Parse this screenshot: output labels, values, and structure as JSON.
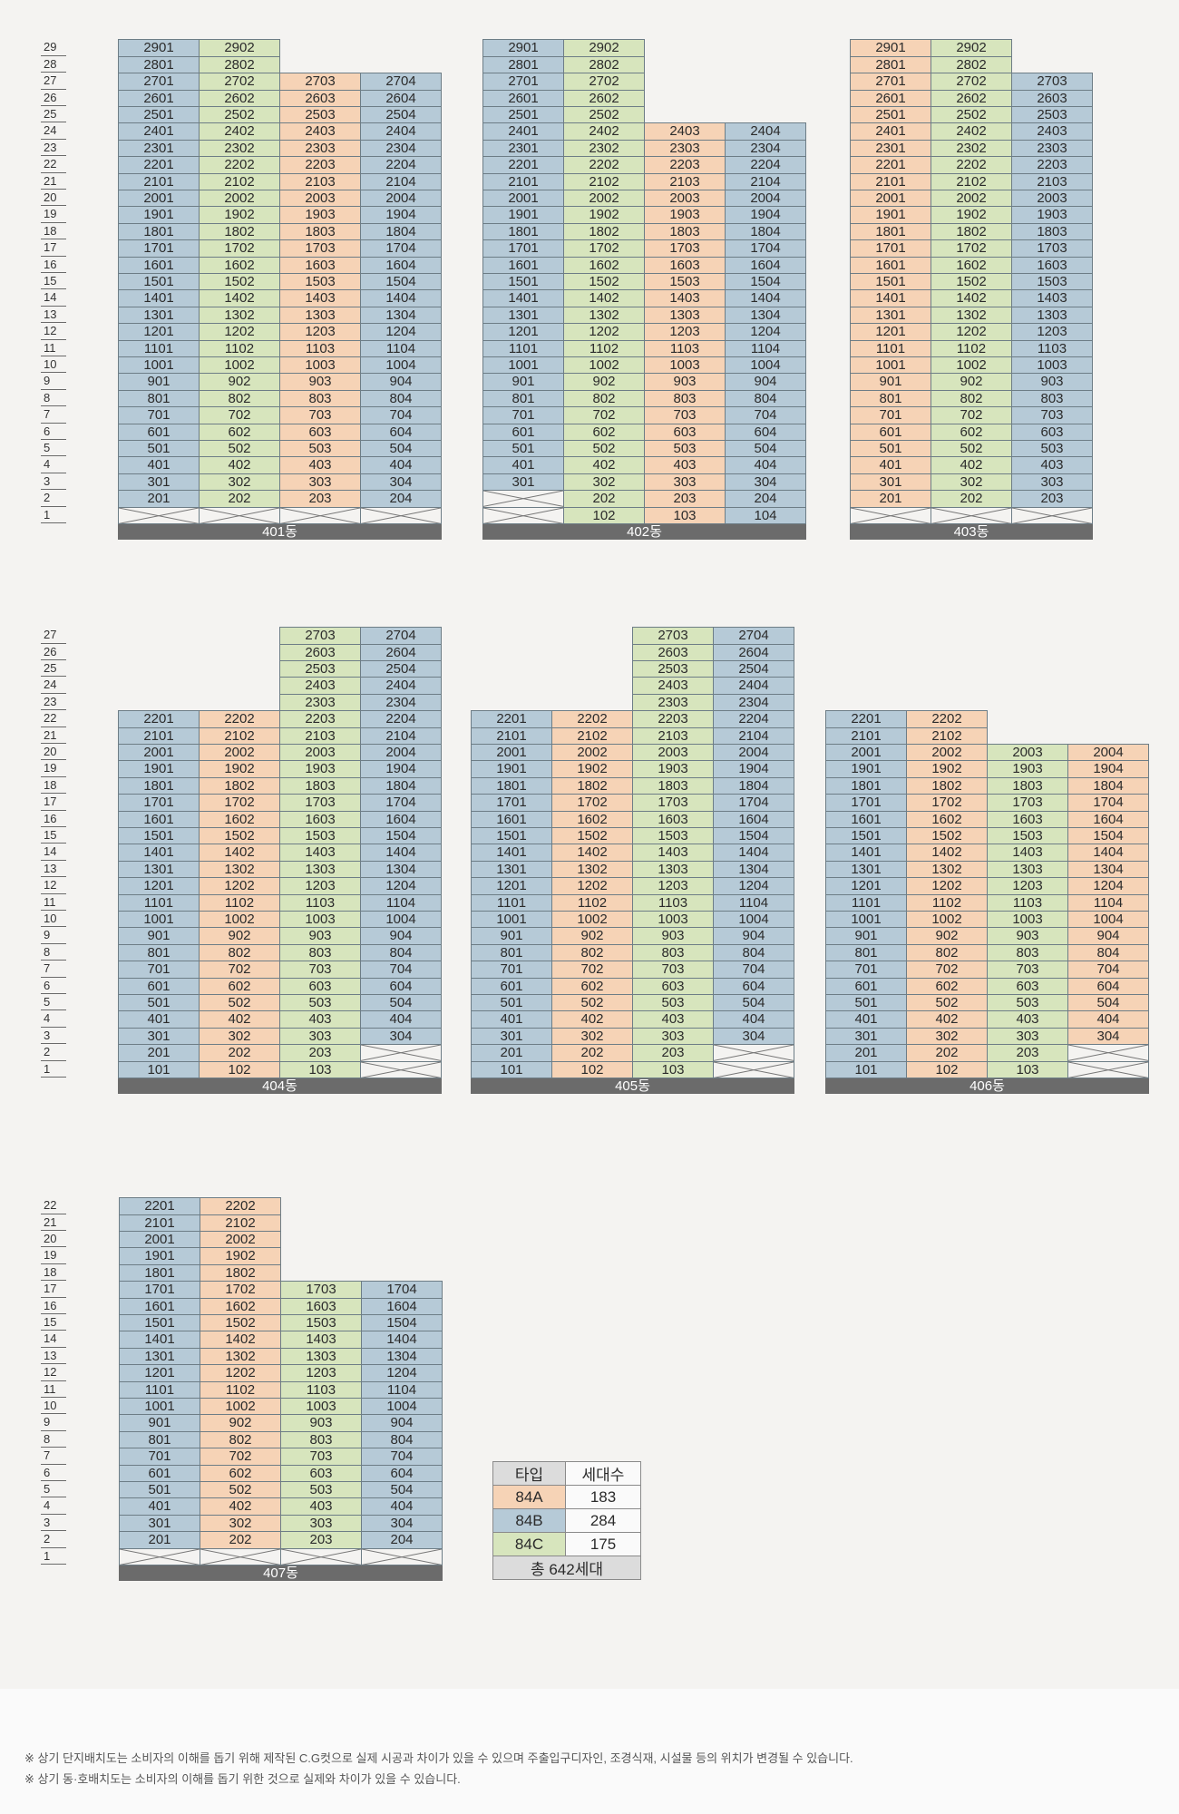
{
  "buildings": [
    {
      "name": "401동",
      "floors": 29,
      "units": [
        {
          "type": "84B",
          "min": 2,
          "max": 29
        },
        {
          "type": "84C",
          "min": 2,
          "max": 29
        },
        {
          "type": "84A",
          "min": 2,
          "max": 27
        },
        {
          "type": "84B",
          "min": 2,
          "max": 27
        }
      ],
      "col_types_by_floor": {}
    },
    {
      "name": "402동",
      "floors": 29,
      "units": [
        {
          "type": "84B",
          "min": 3,
          "max": 29
        },
        {
          "type": "84C",
          "min": 1,
          "max": 29
        },
        {
          "type": "84A",
          "min": 1,
          "max": 24
        },
        {
          "type": "84B",
          "min": 1,
          "max": 24
        }
      ]
    },
    {
      "name": "403동",
      "floors": 29,
      "units": [
        {
          "type": "84A",
          "min": 2,
          "max": 29
        },
        {
          "type": "84C",
          "min": 2,
          "max": 29
        },
        {
          "type": "84B",
          "min": 2,
          "max": 27
        }
      ]
    },
    {
      "name": "404동",
      "floors": 27,
      "units": [
        {
          "type": "84B",
          "min": 1,
          "max": 22
        },
        {
          "type": "84A",
          "min": 1,
          "max": 22
        },
        {
          "type": "84C",
          "min": 1,
          "max": 27
        },
        {
          "type": "84B",
          "min": 3,
          "max": 27
        }
      ]
    },
    {
      "name": "405동",
      "floors": 27,
      "units": [
        {
          "type": "84B",
          "min": 1,
          "max": 22
        },
        {
          "type": "84A",
          "min": 1,
          "max": 22
        },
        {
          "type": "84C",
          "min": 1,
          "max": 27
        },
        {
          "type": "84B",
          "min": 3,
          "max": 27
        }
      ]
    },
    {
      "name": "406동",
      "floors": 27,
      "units": [
        {
          "type": "84B",
          "min": 1,
          "max": 22
        },
        {
          "type": "84A",
          "min": 1,
          "max": 22
        },
        {
          "type": "84C",
          "min": 1,
          "max": 20
        },
        {
          "type": "84A",
          "min": 3,
          "max": 20
        }
      ]
    },
    {
      "name": "407동",
      "floors": 22,
      "units": [
        {
          "type": "84B",
          "min": 2,
          "max": 22
        },
        {
          "type": "84A",
          "min": 2,
          "max": 22
        },
        {
          "type": "84C",
          "min": 2,
          "max": 17
        },
        {
          "type": "84B",
          "min": 2,
          "max": 17
        }
      ]
    }
  ],
  "legend": {
    "header": [
      "타입",
      "세대수"
    ],
    "rows": [
      {
        "type": "84A",
        "count": "183",
        "color": "#f6d3b6"
      },
      {
        "type": "84B",
        "count": "284",
        "color": "#b6cad7"
      },
      {
        "type": "84C",
        "count": "175",
        "color": "#d7e5bd"
      }
    ],
    "total": "총 642세대"
  },
  "colors": {
    "84A": "#f6d3b6",
    "84B": "#b6cad7",
    "84C": "#d7e5bd",
    "bar": "#6b6b6b",
    "background": "#f4f3f1"
  },
  "notes": [
    "※ 상기 단지배치도는 소비자의 이해를 돕기 위해 제작된 C.G컷으로 실제 시공과 차이가 있을 수 있으며 주출입구디자인, 조경식재, 시설물 등의 위치가 변경될 수 있습니다.",
    "※ 상기 동·호배치도는 소비자의 이해를 돕기 위한 것으로 실제와 차이가 있을 수 있습니다."
  ]
}
